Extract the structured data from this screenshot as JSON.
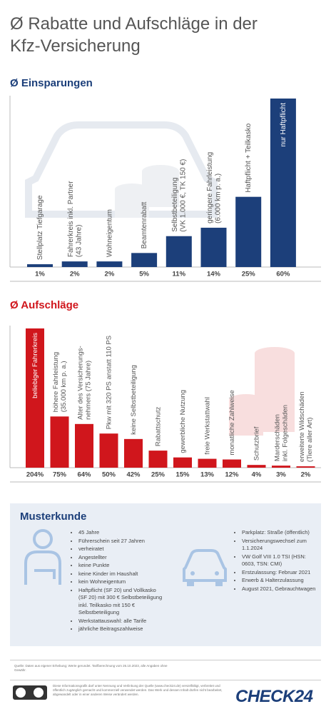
{
  "title": "Ø Rabatte und Aufschläge in der Kfz-Versicherung",
  "chart_data": [
    {
      "type": "bar",
      "title": "Ø Einsparungen",
      "color": "#1c3f7a",
      "title_color": "#1c3f7a",
      "categories": [
        "Stellplatz Tiefgarage",
        "Fahrerkreis inkl. Partner\n(43 Jahre)",
        "Wohneigentum",
        "Beamtenrabatt",
        "Selbstbeteiligung\n(VK 1.000 €, TK 150 €)",
        "geringere Fahrleistung\n(6.000 km p. a.)",
        "Haftpflicht + Teilkasko",
        "nur Haftpflicht"
      ],
      "values": [
        1,
        2,
        2,
        5,
        11,
        14,
        25,
        60
      ],
      "value_labels": [
        "1%",
        "2%",
        "2%",
        "5%",
        "11%",
        "14%",
        "25%",
        "60%"
      ]
    },
    {
      "type": "bar",
      "title": "Ø Aufschläge",
      "color": "#d0161c",
      "title_color": "#d0161c",
      "categories": [
        "beliebiger Fahrerkreis",
        "höhere Fahrleistung\n(35.000 km p. a.)",
        "Alter des Versicherungs-\nnehmers (75 Jahre)",
        "Pkw mit 320 PS anstatt 110 PS",
        "keine Selbstbeteiligung",
        "Rabattschutz",
        "gewerbliche Nutzung",
        "freie Werkstattwahl",
        "monatliche Zahlweise",
        "Schutzbrief",
        "Marderschäden\ninkl. Folgeschäden",
        "erweiterte Wildschäden\n(Tiere aller Art)"
      ],
      "values": [
        204,
        75,
        64,
        50,
        42,
        25,
        15,
        13,
        12,
        4,
        3,
        2
      ],
      "value_labels": [
        "204%",
        "75%",
        "64%",
        "50%",
        "42%",
        "25%",
        "15%",
        "13%",
        "12%",
        "4%",
        "3%",
        "2%"
      ]
    }
  ],
  "musterkunde": {
    "title": "Musterkunde",
    "left": [
      "45 Jahre",
      "Führerschein seit 27 Jahren",
      "verheiratet",
      "Angestellter",
      "keine Punkte",
      "keine Kinder im Haushalt",
      "kein Wohneigentum",
      "Haftpflicht (SF 20) und Vollkasko (SF 20) mit 300 € Selbstbeteiligung inkl. Teilkasko mit 150 € Selbstbeteiligung",
      "Werkstattauswahl: alle Tarife",
      "jährliche Beitragszahlweise"
    ],
    "right": [
      "Parkplatz: Straße (öffentlich)",
      "Versicherungswechsel zum 1.1.2024",
      "VW Golf VIII 1.0 TSI (HSN: 0603, TSN: CMI)",
      "Erstzulassung: Februar 2021",
      "Erwerb & Halterzulassung",
      "August 2021, Gebrauchtwagen"
    ]
  },
  "footer": {
    "source": "Quelle: Daten aus eigener Erhebung; Werte gerundet. Tarifberechnung vom 26.10.2023, alle Angaben ohne Gewähr.",
    "license": "Diese Informationsgrafik darf unter Nennung und Verlinkung der Quelle (www.check24.de) vervielfältigt, verbreitet und öffentlich zugänglich gemacht und kommerziell verwendet werden. Das Werk und dessen Inhalt dürfen nicht bearbeitet, abgewandelt oder in einer anderen Weise verändert werden.",
    "logo": "CHECK24"
  }
}
